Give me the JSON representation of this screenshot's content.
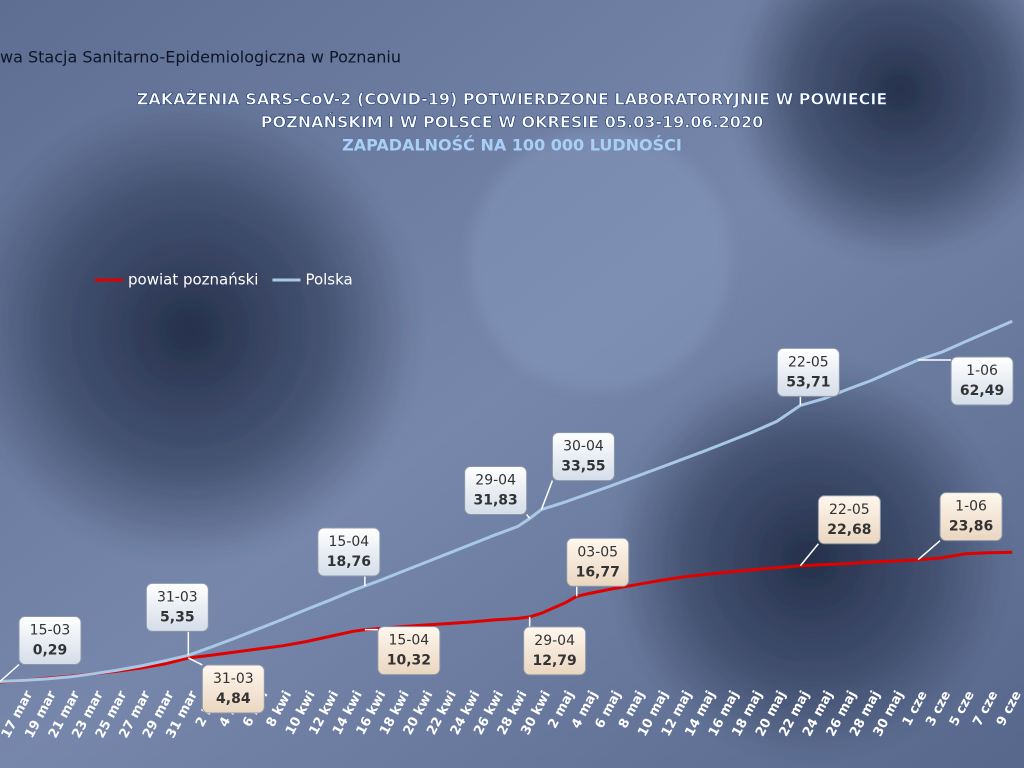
{
  "chart_data": {
    "type": "line",
    "header": "wa Stacja Sanitarno-Epidemiologiczna w Poznaniu",
    "title": [
      "ZAKAŻENIA SARS-CoV-2 (COVID-19) POTWIERDZONE LABORATORYJNIE W POWIECIE",
      "POZNAŃSKIM I W POLSCE W OKRESIE 05.03-19.06.2020"
    ],
    "subtitle": "ZAPADALNOŚĆ NA 100 000 LUDNOŚCI",
    "x": [
      75,
      77,
      79,
      81,
      83,
      85,
      87,
      89,
      91,
      93,
      95,
      97,
      99,
      101,
      103,
      105,
      106,
      107,
      109,
      111,
      113,
      115,
      117,
      119,
      120,
      121,
      123,
      124,
      125,
      127,
      129,
      131,
      133,
      135,
      137,
      139,
      141,
      143,
      145,
      147,
      149,
      151,
      153,
      155,
      157,
      159,
      161
    ],
    "xlim": [
      75,
      162
    ],
    "ylim": [
      0,
      130
    ],
    "xticks": [
      {
        "value": 77,
        "label": "17 mar"
      },
      {
        "value": 79,
        "label": "19 mar"
      },
      {
        "value": 81,
        "label": "21 mar"
      },
      {
        "value": 83,
        "label": "23 mar"
      },
      {
        "value": 85,
        "label": "25 mar"
      },
      {
        "value": 87,
        "label": "27 mar"
      },
      {
        "value": 89,
        "label": "29 mar"
      },
      {
        "value": 91,
        "label": "31 mar"
      },
      {
        "value": 93,
        "label": "2 kwi"
      },
      {
        "value": 95,
        "label": "4 kwi"
      },
      {
        "value": 97,
        "label": "6 kwi"
      },
      {
        "value": 99,
        "label": "8 kwi"
      },
      {
        "value": 101,
        "label": "10 kwi"
      },
      {
        "value": 103,
        "label": "12 kwi"
      },
      {
        "value": 105,
        "label": "14 kwi"
      },
      {
        "value": 107,
        "label": "16 kwi"
      },
      {
        "value": 109,
        "label": "18 kwi"
      },
      {
        "value": 111,
        "label": "20 kwi"
      },
      {
        "value": 113,
        "label": "22 kwi"
      },
      {
        "value": 115,
        "label": "24 kwi"
      },
      {
        "value": 117,
        "label": "26 kwi"
      },
      {
        "value": 119,
        "label": "28 kwi"
      },
      {
        "value": 121,
        "label": "30 kwi"
      },
      {
        "value": 123,
        "label": "2 maj"
      },
      {
        "value": 125,
        "label": "4 maj"
      },
      {
        "value": 127,
        "label": "6 maj"
      },
      {
        "value": 129,
        "label": "8 maj"
      },
      {
        "value": 131,
        "label": "10 maj"
      },
      {
        "value": 133,
        "label": "12 maj"
      },
      {
        "value": 135,
        "label": "14 maj"
      },
      {
        "value": 137,
        "label": "16 maj"
      },
      {
        "value": 139,
        "label": "18 maj"
      },
      {
        "value": 141,
        "label": "20 maj"
      },
      {
        "value": 143,
        "label": "22 maj"
      },
      {
        "value": 145,
        "label": "24 maj"
      },
      {
        "value": 147,
        "label": "26 maj"
      },
      {
        "value": 149,
        "label": "28 maj"
      },
      {
        "value": 151,
        "label": "30 maj"
      },
      {
        "value": 153,
        "label": "1 cze"
      },
      {
        "value": 155,
        "label": "3 cze"
      },
      {
        "value": 157,
        "label": "5 cze"
      },
      {
        "value": 159,
        "label": "7 cze"
      },
      {
        "value": 161,
        "label": "9 cze"
      }
    ],
    "legend": "top-left",
    "series": [
      {
        "name": "powiat poznański",
        "color": "#e00000",
        "values": [
          0.2,
          0.5,
          0.9,
          1.3,
          1.8,
          2.3,
          2.9,
          3.7,
          4.84,
          5.4,
          6.0,
          6.6,
          7.2,
          8.0,
          9.0,
          10.0,
          10.32,
          10.5,
          10.9,
          11.2,
          11.5,
          11.8,
          12.2,
          12.5,
          12.79,
          13.5,
          15.5,
          16.77,
          17.3,
          18.2,
          19.0,
          19.8,
          20.5,
          21.0,
          21.5,
          21.9,
          22.3,
          22.68,
          22.9,
          23.1,
          23.4,
          23.6,
          23.86,
          24.2,
          25.0,
          25.2,
          25.3
        ],
        "value_labels": [
          null,
          null,
          null,
          null,
          null,
          null,
          null,
          null,
          "4,84",
          null,
          null,
          null,
          null,
          null,
          null,
          null,
          "10,32",
          null,
          null,
          null,
          null,
          null,
          null,
          null,
          "12,79",
          null,
          null,
          "16,77",
          null,
          null,
          null,
          null,
          null,
          null,
          null,
          null,
          null,
          "22,68",
          null,
          null,
          null,
          null,
          "23,86",
          null,
          null,
          null,
          null
        ],
        "date_labels": [
          null,
          null,
          null,
          null,
          null,
          null,
          null,
          null,
          "31-03",
          null,
          null,
          null,
          null,
          null,
          null,
          null,
          "15-04",
          null,
          null,
          null,
          null,
          null,
          null,
          null,
          "29-04",
          null,
          null,
          "03-05",
          null,
          null,
          null,
          null,
          null,
          null,
          null,
          null,
          null,
          "22-05",
          null,
          null,
          null,
          null,
          "1-06",
          null,
          null,
          null,
          null
        ]
      },
      {
        "name": "Polska",
        "color": "#a9c8e6",
        "values": [
          0.29,
          0.5,
          0.8,
          1.2,
          1.8,
          2.5,
          3.3,
          4.3,
          5.35,
          7.0,
          8.7,
          10.5,
          12.3,
          14.2,
          16.0,
          17.9,
          18.76,
          19.6,
          21.4,
          23.2,
          25.0,
          26.8,
          28.6,
          30.3,
          31.83,
          33.55,
          35.0,
          35.8,
          36.6,
          38.2,
          39.9,
          41.6,
          43.3,
          45.0,
          46.8,
          48.6,
          50.6,
          53.71,
          55.0,
          56.8,
          58.5,
          60.5,
          62.49,
          64.0,
          66.0,
          68.0,
          70.0
        ],
        "value_labels": [
          "0,29",
          null,
          null,
          null,
          null,
          null,
          null,
          null,
          "5,35",
          null,
          null,
          null,
          null,
          null,
          null,
          null,
          "18,76",
          null,
          null,
          null,
          null,
          null,
          null,
          null,
          "31,83",
          "33,55",
          null,
          null,
          null,
          null,
          null,
          null,
          null,
          null,
          null,
          null,
          null,
          "53,71",
          null,
          null,
          null,
          null,
          "62,49",
          null,
          null,
          null,
          null
        ],
        "date_labels": [
          "15-03",
          null,
          null,
          null,
          null,
          null,
          null,
          null,
          "31-03",
          null,
          null,
          null,
          null,
          null,
          null,
          null,
          "15-04",
          null,
          null,
          null,
          null,
          null,
          null,
          null,
          "29-04",
          "30-04",
          null,
          null,
          null,
          null,
          null,
          null,
          null,
          null,
          null,
          null,
          null,
          "22-05",
          null,
          null,
          null,
          null,
          "1-06",
          null,
          null,
          null,
          null
        ]
      }
    ]
  }
}
